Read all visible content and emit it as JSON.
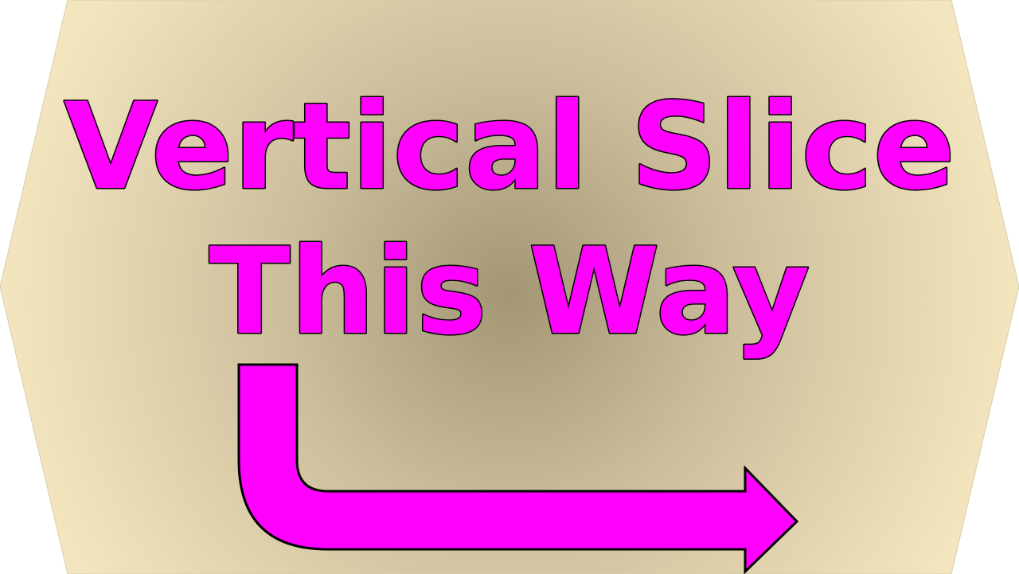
{
  "sign": {
    "line1": "Vertical Slice",
    "line2": "This Way",
    "colors": {
      "text_fill": "#ff00ff",
      "text_outline": "#000000",
      "arrow_fill": "#ff00ff",
      "arrow_outline": "#000000",
      "background_center": "#a39675",
      "background_edge": "#f3e6bf",
      "page_background": "#ffffff"
    },
    "arrow_icon": "bent-arrow-down-right-icon"
  }
}
